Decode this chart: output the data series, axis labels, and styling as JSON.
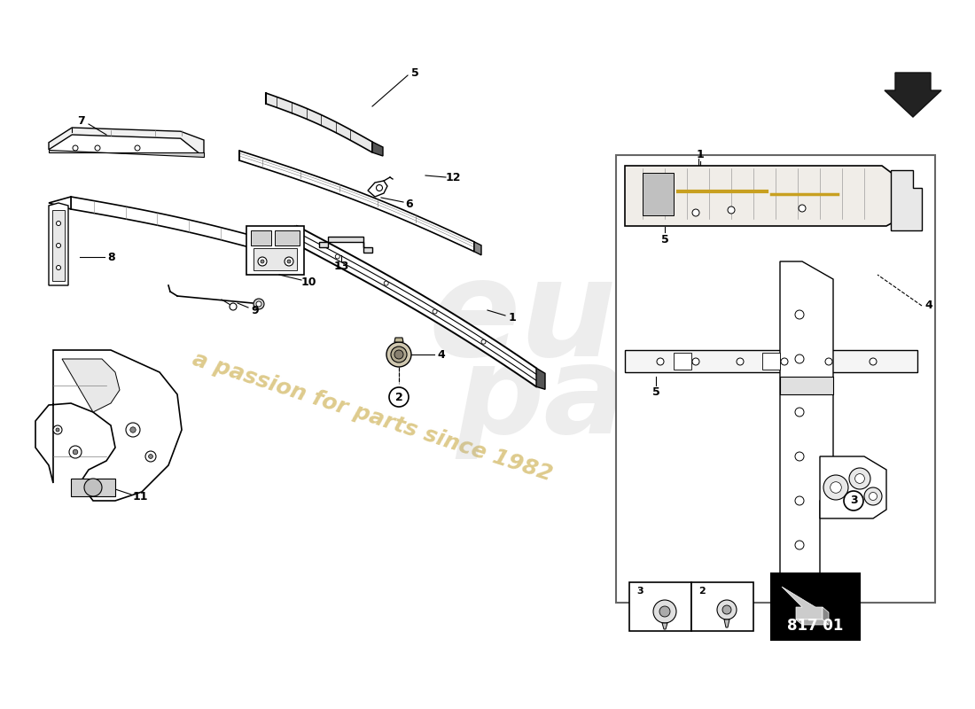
{
  "page_code": "817 01",
  "background_color": "#ffffff",
  "watermark_text": "a passion for parts since 1982",
  "watermark_color": "#c8a840",
  "line_color": "#000000",
  "detail_border_color": "#888888",
  "logo_opacity": 0.18
}
